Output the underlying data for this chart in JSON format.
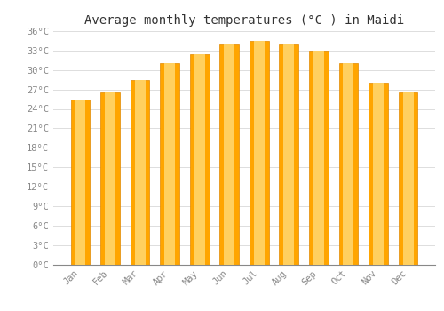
{
  "title": "Average monthly temperatures (°C ) in Maidi",
  "months": [
    "Jan",
    "Feb",
    "Mar",
    "Apr",
    "May",
    "Jun",
    "Jul",
    "Aug",
    "Sep",
    "Oct",
    "Nov",
    "Dec"
  ],
  "values": [
    25.5,
    26.5,
    28.5,
    31.0,
    32.5,
    34.0,
    34.5,
    34.0,
    33.0,
    31.0,
    28.0,
    26.5
  ],
  "bar_color_face": "#FFA500",
  "bar_color_light": "#FFD060",
  "bar_color_edge": "#E08800",
  "background_color": "#FFFFFF",
  "grid_color": "#DDDDDD",
  "ylim": [
    0,
    36
  ],
  "yticks": [
    0,
    3,
    6,
    9,
    12,
    15,
    18,
    21,
    24,
    27,
    30,
    33,
    36
  ],
  "tick_label_color": "#888888",
  "title_color": "#333333",
  "title_fontsize": 10,
  "tick_fontsize": 7.5,
  "bar_width": 0.65
}
